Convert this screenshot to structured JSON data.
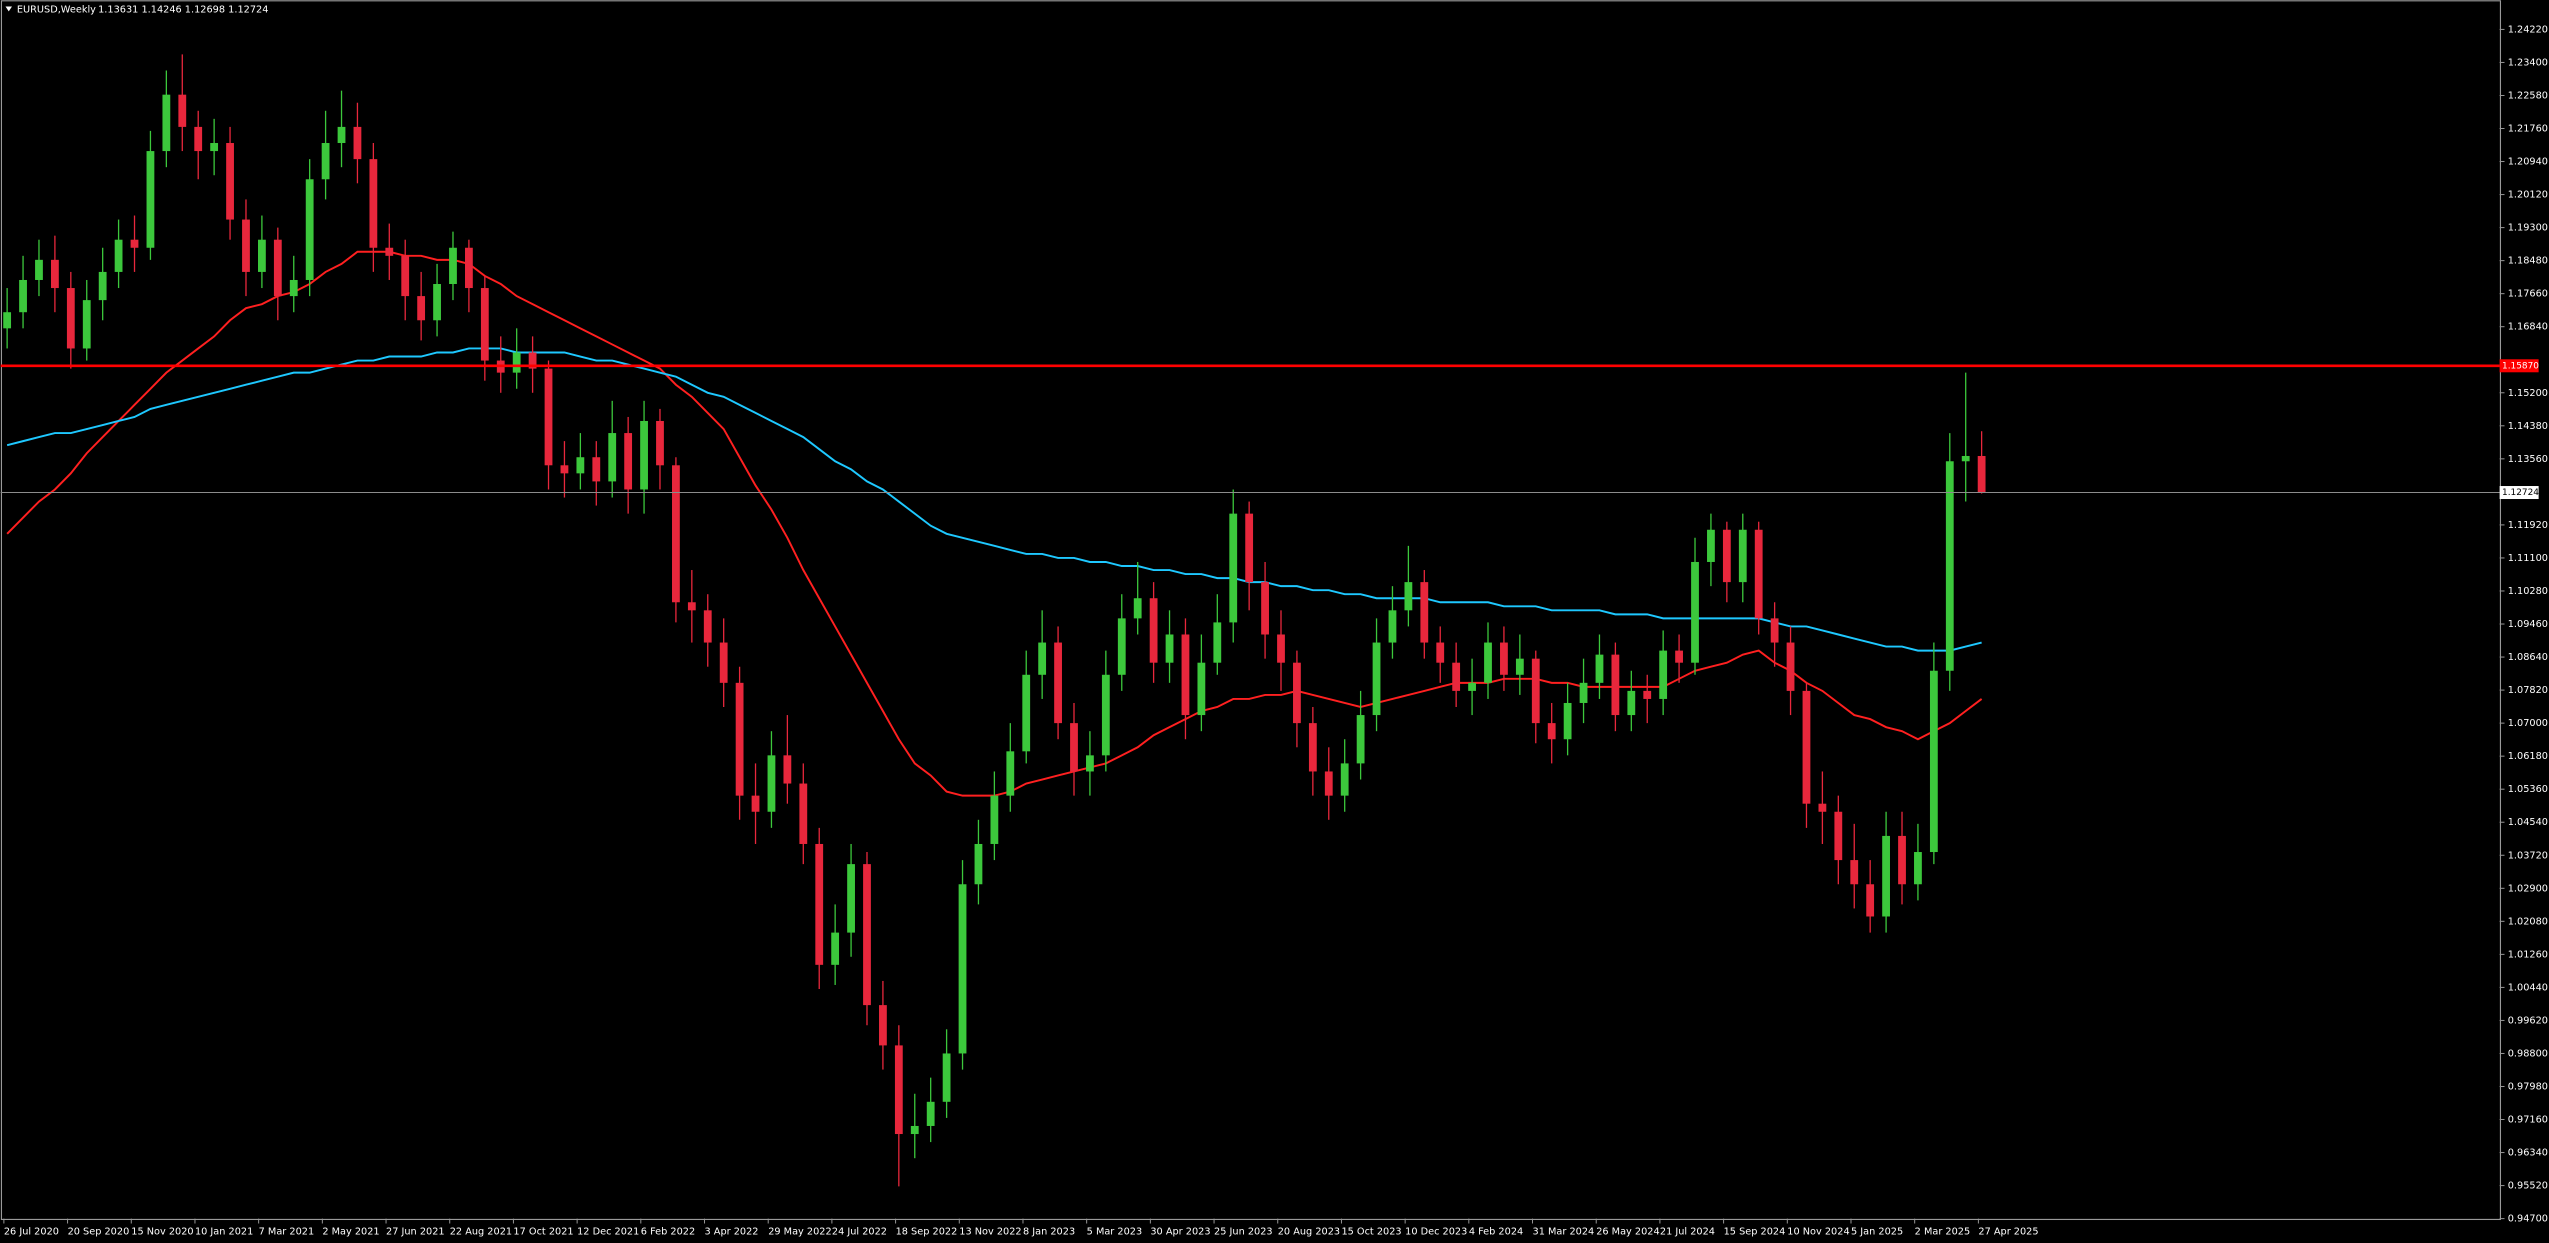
{
  "chart_data": {
    "type": "candlestick",
    "title": "EURUSD,Weekly",
    "info": "1.13631 1.14246 1.12698 1.12724",
    "bull_color": "#3cc83c",
    "bear_color": "#e8273c",
    "categories": [
      "26 Jul 2020",
      null,
      null,
      null,
      "20 Sep 2020",
      null,
      null,
      null,
      "15 Nov 2020",
      null,
      null,
      null,
      "10 Jan 2021",
      null,
      null,
      null,
      "7 Mar 2021",
      null,
      null,
      null,
      "2 May 2021",
      null,
      null,
      null,
      "27 Jun 2021",
      null,
      null,
      null,
      "22 Aug 2021",
      null,
      null,
      null,
      "17 Oct 2021",
      null,
      null,
      null,
      "12 Dec 2021",
      null,
      null,
      null,
      "6 Feb 2022",
      null,
      null,
      null,
      "3 Apr 2022",
      null,
      null,
      null,
      "29 May 2022",
      null,
      null,
      null,
      "24 Jul 2022",
      null,
      null,
      null,
      "18 Sep 2022",
      null,
      null,
      null,
      "13 Nov 2022",
      null,
      null,
      null,
      "8 Jan 2023",
      null,
      null,
      null,
      "5 Mar 2023",
      null,
      null,
      null,
      "30 Apr 2023",
      null,
      null,
      null,
      "25 Jun 2023",
      null,
      null,
      null,
      "20 Aug 2023",
      null,
      null,
      null,
      "15 Oct 2023",
      null,
      null,
      null,
      "10 Dec 2023",
      null,
      null,
      null,
      "4 Feb 2024",
      null,
      null,
      null,
      "31 Mar 2024",
      null,
      null,
      null,
      "26 May 2024",
      null,
      null,
      null,
      "21 Jul 2024",
      null,
      null,
      null,
      "15 Sep 2024",
      null,
      null,
      null,
      "10 Nov 2024",
      null,
      null,
      null,
      "5 Jan 2025",
      null,
      null,
      null,
      "2 Mar 2025",
      null,
      null,
      null,
      "27 Apr 2025"
    ],
    "open": [
      1.168,
      1.172,
      1.18,
      1.185,
      1.178,
      1.163,
      1.175,
      1.182,
      1.19,
      1.188,
      1.212,
      1.226,
      1.218,
      1.212,
      1.214,
      1.195,
      1.182,
      1.19,
      1.176,
      1.18,
      1.205,
      1.214,
      1.218,
      1.21,
      1.188,
      1.186,
      1.176,
      1.17,
      1.179,
      1.188,
      1.178,
      1.16,
      1.157,
      1.162,
      1.158,
      1.134,
      1.132,
      1.136,
      1.13,
      1.142,
      1.128,
      1.145,
      1.134,
      1.1,
      1.098,
      1.09,
      1.08,
      1.052,
      1.048,
      1.062,
      1.055,
      1.04,
      1.01,
      1.018,
      1.035,
      1.0,
      0.99,
      0.968,
      0.97,
      0.976,
      0.988,
      1.03,
      1.04,
      1.052,
      1.063,
      1.082,
      1.09,
      1.07,
      1.058,
      1.062,
      1.082,
      1.096,
      1.101,
      1.085,
      1.092,
      1.072,
      1.085,
      1.095,
      1.122,
      1.105,
      1.092,
      1.085,
      1.07,
      1.058,
      1.052,
      1.06,
      1.072,
      1.09,
      1.098,
      1.105,
      1.09,
      1.085,
      1.078,
      1.08,
      1.09,
      1.082,
      1.086,
      1.07,
      1.066,
      1.075,
      1.08,
      1.087,
      1.072,
      1.078,
      1.076,
      1.088,
      1.085,
      1.11,
      1.118,
      1.105,
      1.118,
      1.096,
      1.09,
      1.078,
      1.05,
      1.048,
      1.036,
      1.03,
      1.022,
      1.042,
      1.03,
      1.038,
      1.083,
      1.135,
      1.13631
    ],
    "high": [
      1.178,
      1.186,
      1.19,
      1.191,
      1.182,
      1.18,
      1.188,
      1.195,
      1.196,
      1.217,
      1.232,
      1.236,
      1.222,
      1.22,
      1.218,
      1.2,
      1.196,
      1.193,
      1.186,
      1.21,
      1.222,
      1.227,
      1.224,
      1.214,
      1.194,
      1.19,
      1.182,
      1.184,
      1.192,
      1.19,
      1.181,
      1.166,
      1.168,
      1.166,
      1.16,
      1.14,
      1.142,
      1.14,
      1.15,
      1.146,
      1.15,
      1.148,
      1.136,
      1.108,
      1.102,
      1.096,
      1.084,
      1.06,
      1.068,
      1.072,
      1.06,
      1.044,
      1.025,
      1.04,
      1.038,
      1.006,
      0.995,
      0.978,
      0.982,
      0.994,
      1.036,
      1.046,
      1.058,
      1.07,
      1.088,
      1.098,
      1.094,
      1.075,
      1.068,
      1.088,
      1.102,
      1.11,
      1.105,
      1.098,
      1.096,
      1.092,
      1.102,
      1.128,
      1.125,
      1.11,
      1.098,
      1.088,
      1.074,
      1.064,
      1.066,
      1.078,
      1.096,
      1.104,
      1.114,
      1.108,
      1.094,
      1.09,
      1.086,
      1.095,
      1.094,
      1.092,
      1.088,
      1.075,
      1.08,
      1.086,
      1.092,
      1.09,
      1.083,
      1.082,
      1.093,
      1.092,
      1.116,
      1.122,
      1.12,
      1.122,
      1.12,
      1.1,
      1.094,
      1.08,
      1.058,
      1.052,
      1.045,
      1.036,
      1.048,
      1.048,
      1.045,
      1.09,
      1.142,
      1.157,
      1.14246
    ],
    "low": [
      1.163,
      1.168,
      1.176,
      1.172,
      1.158,
      1.16,
      1.17,
      1.178,
      1.182,
      1.185,
      1.208,
      1.212,
      1.205,
      1.206,
      1.19,
      1.176,
      1.178,
      1.17,
      1.172,
      1.176,
      1.2,
      1.208,
      1.204,
      1.182,
      1.18,
      1.17,
      1.165,
      1.166,
      1.175,
      1.172,
      1.155,
      1.152,
      1.153,
      1.152,
      1.128,
      1.126,
      1.128,
      1.124,
      1.126,
      1.122,
      1.122,
      1.128,
      1.095,
      1.09,
      1.084,
      1.074,
      1.046,
      1.04,
      1.044,
      1.05,
      1.035,
      1.004,
      1.005,
      1.012,
      0.995,
      0.984,
      0.955,
      0.962,
      0.966,
      0.972,
      0.984,
      1.025,
      1.036,
      1.048,
      1.06,
      1.076,
      1.066,
      1.052,
      1.052,
      1.058,
      1.078,
      1.092,
      1.08,
      1.08,
      1.066,
      1.068,
      1.082,
      1.09,
      1.098,
      1.086,
      1.078,
      1.064,
      1.052,
      1.046,
      1.048,
      1.056,
      1.068,
      1.086,
      1.094,
      1.086,
      1.08,
      1.074,
      1.072,
      1.076,
      1.078,
      1.077,
      1.065,
      1.06,
      1.062,
      1.07,
      1.076,
      1.068,
      1.068,
      1.07,
      1.072,
      1.08,
      1.082,
      1.104,
      1.1,
      1.1,
      1.092,
      1.084,
      1.072,
      1.044,
      1.04,
      1.03,
      1.024,
      1.018,
      1.018,
      1.025,
      1.026,
      1.035,
      1.078,
      1.125,
      1.12698
    ],
    "close": [
      1.172,
      1.18,
      1.185,
      1.178,
      1.163,
      1.175,
      1.182,
      1.19,
      1.188,
      1.212,
      1.226,
      1.218,
      1.212,
      1.214,
      1.195,
      1.182,
      1.19,
      1.176,
      1.18,
      1.205,
      1.214,
      1.218,
      1.21,
      1.188,
      1.186,
      1.176,
      1.17,
      1.179,
      1.188,
      1.178,
      1.16,
      1.157,
      1.162,
      1.158,
      1.134,
      1.132,
      1.136,
      1.13,
      1.142,
      1.128,
      1.145,
      1.134,
      1.1,
      1.098,
      1.09,
      1.08,
      1.052,
      1.048,
      1.062,
      1.055,
      1.04,
      1.01,
      1.018,
      1.035,
      1.0,
      0.99,
      0.968,
      0.97,
      0.976,
      0.988,
      1.03,
      1.04,
      1.052,
      1.063,
      1.082,
      1.09,
      1.07,
      1.058,
      1.062,
      1.082,
      1.096,
      1.101,
      1.085,
      1.092,
      1.072,
      1.085,
      1.095,
      1.122,
      1.105,
      1.092,
      1.085,
      1.07,
      1.058,
      1.052,
      1.06,
      1.072,
      1.09,
      1.098,
      1.105,
      1.09,
      1.085,
      1.078,
      1.08,
      1.09,
      1.082,
      1.086,
      1.07,
      1.066,
      1.075,
      1.08,
      1.087,
      1.072,
      1.078,
      1.076,
      1.088,
      1.085,
      1.11,
      1.118,
      1.105,
      1.118,
      1.096,
      1.09,
      1.078,
      1.05,
      1.048,
      1.036,
      1.03,
      1.022,
      1.042,
      1.03,
      1.038,
      1.083,
      1.135,
      1.13631,
      1.12724
    ],
    "lines": [
      {
        "color": "#ff2020",
        "values": [
          1.117,
          1.121,
          1.125,
          1.128,
          1.132,
          1.137,
          1.141,
          1.145,
          1.149,
          1.153,
          1.157,
          1.16,
          1.163,
          1.166,
          1.17,
          1.173,
          1.174,
          1.176,
          1.177,
          1.179,
          1.182,
          1.184,
          1.187,
          1.187,
          1.187,
          1.186,
          1.186,
          1.185,
          1.185,
          1.184,
          1.181,
          1.179,
          1.176,
          1.174,
          1.172,
          1.17,
          1.168,
          1.166,
          1.164,
          1.162,
          1.16,
          1.158,
          1.154,
          1.151,
          1.147,
          1.143,
          1.136,
          1.129,
          1.123,
          1.116,
          1.108,
          1.101,
          1.094,
          1.087,
          1.08,
          1.073,
          1.066,
          1.06,
          1.057,
          1.053,
          1.052,
          1.052,
          1.052,
          1.053,
          1.055,
          1.056,
          1.057,
          1.058,
          1.059,
          1.06,
          1.062,
          1.064,
          1.067,
          1.069,
          1.071,
          1.073,
          1.074,
          1.076,
          1.076,
          1.077,
          1.077,
          1.078,
          1.077,
          1.076,
          1.075,
          1.074,
          1.075,
          1.076,
          1.077,
          1.078,
          1.079,
          1.08,
          1.08,
          1.08,
          1.081,
          1.081,
          1.081,
          1.08,
          1.08,
          1.079,
          1.079,
          1.079,
          1.079,
          1.079,
          1.079,
          1.081,
          1.083,
          1.084,
          1.085,
          1.087,
          1.088,
          1.085,
          1.083,
          1.08,
          1.078,
          1.075,
          1.072,
          1.071,
          1.069,
          1.068,
          1.066,
          1.068,
          1.07,
          1.073,
          1.076
        ]
      },
      {
        "color": "#1ec8ff",
        "values": [
          1.139,
          1.14,
          1.141,
          1.142,
          1.142,
          1.143,
          1.144,
          1.145,
          1.146,
          1.148,
          1.149,
          1.15,
          1.151,
          1.152,
          1.153,
          1.154,
          1.155,
          1.156,
          1.157,
          1.157,
          1.158,
          1.159,
          1.16,
          1.16,
          1.161,
          1.161,
          1.161,
          1.162,
          1.162,
          1.163,
          1.163,
          1.163,
          1.162,
          1.162,
          1.162,
          1.162,
          1.161,
          1.16,
          1.16,
          1.159,
          1.158,
          1.157,
          1.156,
          1.154,
          1.152,
          1.151,
          1.149,
          1.147,
          1.145,
          1.143,
          1.141,
          1.138,
          1.135,
          1.133,
          1.13,
          1.128,
          1.125,
          1.122,
          1.119,
          1.117,
          1.116,
          1.115,
          1.114,
          1.113,
          1.112,
          1.112,
          1.111,
          1.111,
          1.11,
          1.11,
          1.109,
          1.109,
          1.108,
          1.108,
          1.107,
          1.107,
          1.106,
          1.106,
          1.105,
          1.105,
          1.104,
          1.104,
          1.103,
          1.103,
          1.102,
          1.102,
          1.101,
          1.101,
          1.101,
          1.101,
          1.1,
          1.1,
          1.1,
          1.1,
          1.099,
          1.099,
          1.099,
          1.098,
          1.098,
          1.098,
          1.098,
          1.097,
          1.097,
          1.097,
          1.096,
          1.096,
          1.096,
          1.096,
          1.096,
          1.096,
          1.096,
          1.095,
          1.094,
          1.094,
          1.093,
          1.092,
          1.091,
          1.09,
          1.089,
          1.089,
          1.088,
          1.088,
          1.088,
          1.089,
          1.09
        ]
      }
    ],
    "level": {
      "value": 1.1587,
      "label": "1.15870",
      "color": "#ff0000"
    },
    "current_color": "#8c8c8c",
    "ylim": [
      0.947,
      1.2495
    ],
    "yticks": [
      {
        "value": 1.2422,
        "label": "1.24220"
      },
      {
        "value": 1.234,
        "label": "1.23400"
      },
      {
        "value": 1.2258,
        "label": "1.22580"
      },
      {
        "value": 1.2176,
        "label": "1.21760"
      },
      {
        "value": 1.2094,
        "label": "1.20940"
      },
      {
        "value": 1.2012,
        "label": "1.20120"
      },
      {
        "value": 1.193,
        "label": "1.19300"
      },
      {
        "value": 1.1848,
        "label": "1.18480"
      },
      {
        "value": 1.1766,
        "label": "1.17660"
      },
      {
        "value": 1.1684,
        "label": "1.16840"
      },
      {
        "value": 1.152,
        "label": "1.15200"
      },
      {
        "value": 1.1438,
        "label": "1.14380"
      },
      {
        "value": 1.1356,
        "label": "1.13560"
      },
      {
        "value": 1.1192,
        "label": "1.11920"
      },
      {
        "value": 1.111,
        "label": "1.11100"
      },
      {
        "value": 1.1028,
        "label": "1.10280"
      },
      {
        "value": 1.0946,
        "label": "1.09460"
      },
      {
        "value": 1.0864,
        "label": "1.08640"
      },
      {
        "value": 1.0782,
        "label": "1.07820"
      },
      {
        "value": 1.07,
        "label": "1.07000"
      },
      {
        "value": 1.0618,
        "label": "1.06180"
      },
      {
        "value": 1.0536,
        "label": "1.05360"
      },
      {
        "value": 1.0454,
        "label": "1.04540"
      },
      {
        "value": 1.0372,
        "label": "1.03720"
      },
      {
        "value": 1.029,
        "label": "1.02900"
      },
      {
        "value": 1.0208,
        "label": "1.02080"
      },
      {
        "value": 1.0126,
        "label": "1.01260"
      },
      {
        "value": 1.0044,
        "label": "1.00440"
      },
      {
        "value": 0.9962,
        "label": "0.99620"
      },
      {
        "value": 0.988,
        "label": "0.98800"
      },
      {
        "value": 0.9798,
        "label": "0.97980"
      },
      {
        "value": 0.9716,
        "label": "0.97160"
      },
      {
        "value": 0.9634,
        "label": "0.96340"
      },
      {
        "value": 0.9552,
        "label": "0.95520"
      },
      {
        "value": 0.947,
        "label": "0.94700"
      }
    ]
  }
}
